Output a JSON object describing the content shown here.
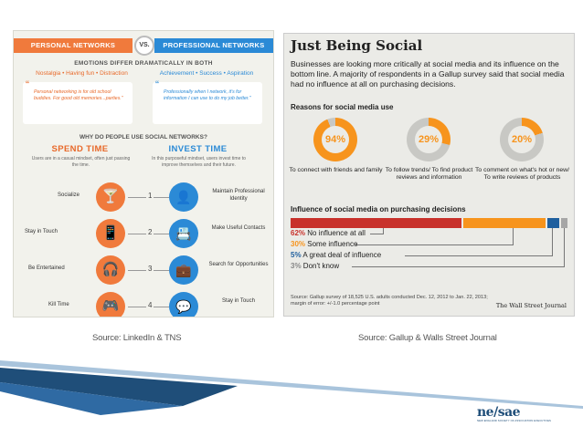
{
  "left_infographic": {
    "header_left": "PERSONAL NETWORKS",
    "vs": "VS.",
    "header_right": "PROFESSIONAL NETWORKS",
    "emotions_title": "EMOTIONS DIFFER DRAMATICALLY IN BOTH",
    "emotions_left": "Nostalgia • Having fun • Distraction",
    "emotions_right": "Achievement • Success • Aspiration",
    "quote_left": "Personal networking is for old school buddies. For good old memories...parties.\"",
    "quote_right": "Professionally when I network, it's for information I can use to do my job better.\"",
    "why_title": "WHY DO PEOPLE USE SOCIAL NETWORKS?",
    "spend_title": "SPEND TIME",
    "spend_sub": "Users are in a casual mindset, often just passing the time.",
    "invest_title": "INVEST TIME",
    "invest_sub": "In this purposeful mindset, users invest time to improve themselves and their future.",
    "rows": [
      {
        "left": "Socialize",
        "num": "1",
        "right": "Maintain Professional Identity"
      },
      {
        "left": "Stay in Touch",
        "num": "2",
        "right": "Make Useful Contacts"
      },
      {
        "left": "Be Entertained",
        "num": "3",
        "right": "Search for Opportunities"
      },
      {
        "left": "Kill Time",
        "num": "4",
        "right": "Stay in Touch"
      }
    ]
  },
  "right_panel": {
    "title": "Just Being Social",
    "intro": "Businesses are looking more critically at social media and its influence on the bottom line. A majority of respondents in a Gallup survey said that social media had no influence at all on purchasing decisions.",
    "reasons_title": "Reasons for social media use",
    "donuts": [
      {
        "pct": "94%",
        "value": 94,
        "label": "To connect with friends and family"
      },
      {
        "pct": "29%",
        "value": 29,
        "label": "To follow trends/ To find product reviews and information"
      },
      {
        "pct": "20%",
        "value": 20,
        "label": "To comment on what's hot or new/ To write reviews of products"
      }
    ],
    "influence_title": "Influence of social media on purchasing decisions",
    "influence": [
      {
        "pct": "62%",
        "value": 62,
        "label": "No influence at all",
        "color": "#c8312b"
      },
      {
        "pct": "30%",
        "value": 30,
        "label": "Some influence",
        "color": "#f7941d"
      },
      {
        "pct": "5%",
        "value": 5,
        "label": "A great deal of influence",
        "color": "#1f5f9e"
      },
      {
        "pct": "3%",
        "value": 3,
        "label": "Don't know",
        "color": "#a6a6a6"
      }
    ],
    "source": "Source: Gallup survey of 18,525 U.S. adults conducted Dec. 12, 2012 to Jan. 22, 2013; margin of error: +/-1.0 percentage point",
    "publisher": "The Wall Street Journal"
  },
  "captions": {
    "left": "Source: LinkedIn & TNS",
    "right": "Source: Gallup & Walls Street Journal"
  },
  "logo": {
    "mark": "ne/sae",
    "sub": "NEW ENGLAND SOCIETY OF ASSOCIATION EXECUTIVES"
  },
  "colors": {
    "orange": "#f07a3c",
    "blue": "#2b8ad6",
    "wsj_orange": "#f7941d",
    "wsj_red": "#c8312b"
  }
}
